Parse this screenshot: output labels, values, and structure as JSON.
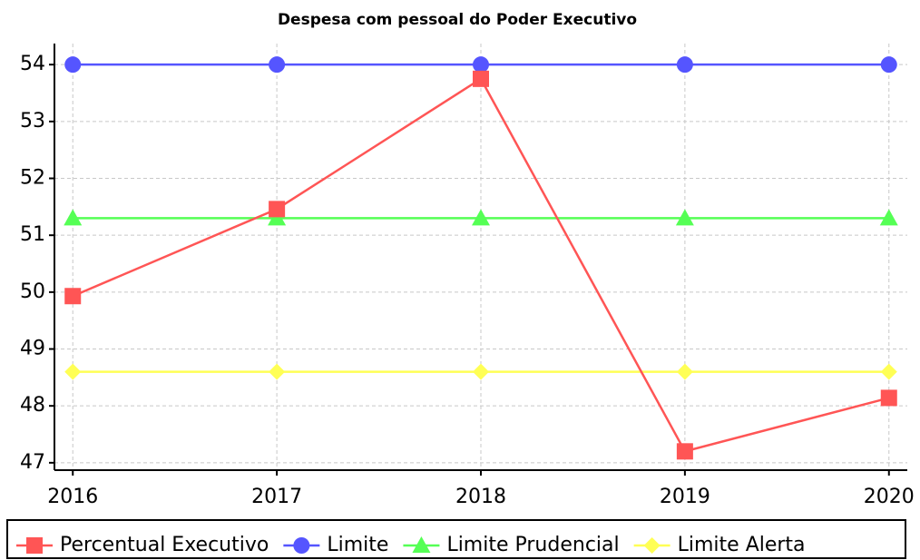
{
  "chart_data": {
    "type": "line",
    "title": "Despesa com pessoal do Poder Executivo",
    "x": [
      2016,
      2017,
      2018,
      2019,
      2020
    ],
    "xlim": [
      2015.91,
      2020.09
    ],
    "xticks": [
      2016,
      2017,
      2018,
      2019,
      2020
    ],
    "ylim": [
      46.87,
      54.37
    ],
    "yticks": [
      47,
      48,
      49,
      50,
      51,
      52,
      53,
      54
    ],
    "grid": true,
    "legend": "bottom",
    "series": [
      {
        "name": "Percentual Executivo",
        "color": "#ff5555",
        "marker": "square",
        "values": [
          49.93,
          51.46,
          53.75,
          47.2,
          48.14
        ]
      },
      {
        "name": "Limite",
        "color": "#5555ff",
        "marker": "circle",
        "values": [
          54,
          54,
          54,
          54,
          54
        ]
      },
      {
        "name": "Limite Prudencial",
        "color": "#55ff55",
        "marker": "triangle",
        "values": [
          51.3,
          51.3,
          51.3,
          51.3,
          51.3
        ]
      },
      {
        "name": "Limite Alerta",
        "color": "#ffff55",
        "marker": "diamond",
        "values": [
          48.6,
          48.6,
          48.6,
          48.6,
          48.6
        ]
      }
    ]
  }
}
